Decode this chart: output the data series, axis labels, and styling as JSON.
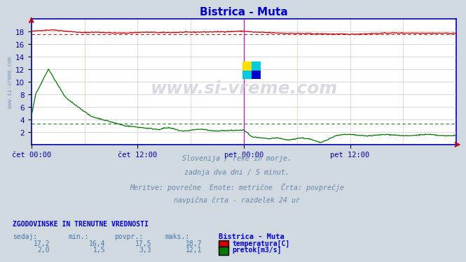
{
  "title": "Bistrica - Muta",
  "title_color": "#0000cc",
  "bg_color": "#d0d8e0",
  "plot_bg_color": "#ffffff",
  "grid_color": "#c8c8c8",
  "axis_color": "#0000aa",
  "xlabel_ticks": [
    "čet 00:00",
    "čet 12:00",
    "pet 00:00",
    "pet 12:00"
  ],
  "xlabel_tick_positions": [
    0.0,
    0.25,
    0.5,
    0.75
  ],
  "ylim": [
    0,
    20
  ],
  "yticks": [
    2,
    4,
    6,
    8,
    10,
    12,
    14,
    16,
    18
  ],
  "temp_color": "#cc0000",
  "flow_color": "#007700",
  "temp_avg": 17.5,
  "flow_avg": 3.3,
  "temp_min": 16.4,
  "temp_max": 18.7,
  "flow_min": 1.5,
  "flow_max": 12.1,
  "temp_current": 17.2,
  "flow_current": 2.0,
  "subtitle_lines": [
    "Slovenija / reke in morje.",
    "zadnja dva dni / 5 minut.",
    "Meritve: povrečne  Enote: metrične  Črta: povprečje",
    "navpična črta - razdelek 24 ur"
  ],
  "subtitle_color": "#6688aa",
  "table_header_color": "#0000cc",
  "table_label_color": "#4477aa",
  "table_value_color": "#4477aa",
  "watermark_text": "www.si-vreme.com",
  "left_text": "www.si-vreme.com",
  "left_text_color": "#7799bb",
  "vline_color": "#cc00cc",
  "border_color": "#0000aa"
}
